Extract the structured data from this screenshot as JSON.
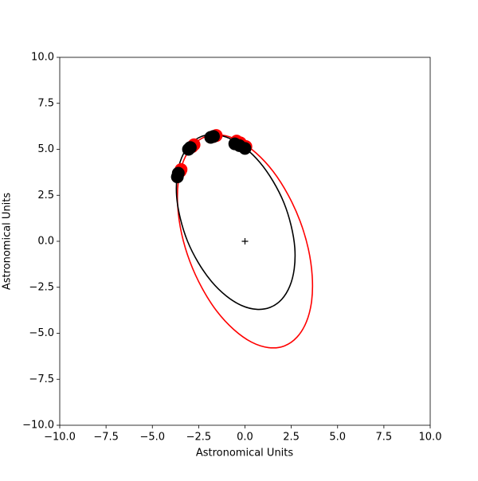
{
  "chart_data": {
    "type": "line",
    "xlabel": "Astronomical Units",
    "ylabel": "Astronomical Units",
    "xlim": [
      -10,
      10
    ],
    "ylim": [
      -10,
      10
    ],
    "xticks": [
      {
        "value": -10,
        "label": "−10.0"
      },
      {
        "value": -7.5,
        "label": "−7.5"
      },
      {
        "value": -5,
        "label": "−5.0"
      },
      {
        "value": -2.5,
        "label": "−2.5"
      },
      {
        "value": 0,
        "label": "0.0"
      },
      {
        "value": 2.5,
        "label": "2.5"
      },
      {
        "value": 5,
        "label": "5.0"
      },
      {
        "value": 7.5,
        "label": "7.5"
      },
      {
        "value": 10,
        "label": "10.0"
      }
    ],
    "yticks": [
      {
        "value": -10,
        "label": "−10.0"
      },
      {
        "value": -7.5,
        "label": "−7.5"
      },
      {
        "value": -5,
        "label": "−5.0"
      },
      {
        "value": -2.5,
        "label": "−2.5"
      },
      {
        "value": 0,
        "label": "0.0"
      },
      {
        "value": 2.5,
        "label": "2.5"
      },
      {
        "value": 5,
        "label": "5.0"
      },
      {
        "value": 7.5,
        "label": "7.5"
      },
      {
        "value": 10,
        "label": "10.0"
      }
    ],
    "series": [
      {
        "kind": "line",
        "color": "#ff0000",
        "x": [
          2.12,
          2.81,
          3.32,
          3.6,
          3.63,
          3.42,
          2.97,
          2.32,
          1.52,
          0.6,
          -0.35,
          -1.28,
          -2.12,
          -2.81,
          -3.32,
          -3.6,
          -3.63,
          -3.42,
          -2.97,
          -2.32,
          -1.52,
          -0.6,
          0.35,
          1.28,
          2.12
        ],
        "values": [
          -5.69,
          -5.21,
          -4.37,
          -3.24,
          -1.89,
          -0.41,
          1.11,
          2.54,
          3.8,
          4.8,
          5.48,
          5.78,
          5.69,
          5.21,
          4.37,
          3.24,
          1.89,
          0.41,
          -1.11,
          -2.54,
          -3.8,
          -4.8,
          -5.48,
          -5.78,
          -5.69
        ]
      },
      {
        "kind": "line",
        "color": "#000000",
        "x": [
          1.37,
          1.98,
          2.42,
          2.66,
          2.69,
          2.49,
          2.1,
          1.52,
          0.81,
          0.01,
          -0.82,
          -1.64,
          -2.37,
          -2.98,
          -3.42,
          -3.66,
          -3.69,
          -3.49,
          -3.1,
          -2.52,
          -1.81,
          -1.01,
          -0.18,
          0.64,
          1.37
        ],
        "values": [
          -3.59,
          -3.16,
          -2.44,
          -1.49,
          -0.36,
          0.86,
          2.1,
          3.26,
          4.28,
          5.07,
          5.59,
          5.8,
          5.69,
          5.26,
          4.54,
          3.59,
          2.46,
          1.24,
          0.0,
          -1.16,
          -2.18,
          -2.97,
          -3.49,
          -3.7,
          -3.59
        ]
      },
      {
        "kind": "dots",
        "color": "#ff0000",
        "x": [
          -3.5,
          -3.45,
          -2.85,
          -2.75,
          -1.7,
          -1.55,
          -0.45,
          -0.25,
          0.05
        ],
        "values": [
          3.8,
          3.9,
          5.15,
          5.25,
          5.7,
          5.75,
          5.45,
          5.35,
          5.15
        ]
      },
      {
        "kind": "dots",
        "color": "#000000",
        "x": [
          -3.65,
          -3.6,
          -3.05,
          -2.95,
          -1.85,
          -1.7,
          -0.55,
          -0.3,
          0.0
        ],
        "values": [
          3.5,
          3.7,
          5.0,
          5.1,
          5.65,
          5.7,
          5.3,
          5.2,
          5.05
        ]
      },
      {
        "kind": "plus",
        "color": "#000000",
        "x": [
          0
        ],
        "values": [
          0
        ]
      }
    ]
  }
}
